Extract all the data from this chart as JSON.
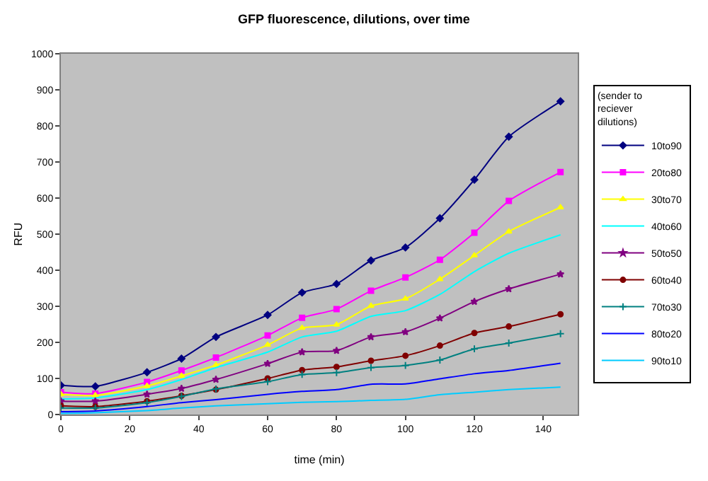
{
  "chart_data": {
    "type": "line",
    "title": "GFP fluorescence, dilutions, over time",
    "xlabel": "time (min)",
    "ylabel": "RFU",
    "legend_title": "(sender to reciever dilutions)",
    "x": [
      0,
      10,
      25,
      35,
      45,
      60,
      70,
      80,
      90,
      100,
      110,
      120,
      130,
      145
    ],
    "series": [
      {
        "name": "10to90",
        "color": "#000080",
        "marker": "diamond",
        "values": [
          81,
          78,
          117,
          155,
          215,
          276,
          338,
          362,
          427,
          463,
          544,
          651,
          770,
          868
        ]
      },
      {
        "name": "20to80",
        "color": "#ff00ff",
        "marker": "square",
        "values": [
          62,
          58,
          90,
          122,
          158,
          219,
          268,
          292,
          343,
          380,
          429,
          504,
          592,
          672
        ]
      },
      {
        "name": "30to70",
        "color": "#ffff00",
        "marker": "triangle",
        "values": [
          56,
          53,
          79,
          107,
          137,
          193,
          240,
          249,
          301,
          321,
          375,
          441,
          507,
          574
        ]
      },
      {
        "name": "40to60",
        "color": "#00ffff",
        "marker": "none",
        "values": [
          43,
          46,
          69,
          97,
          130,
          173,
          215,
          231,
          272,
          288,
          333,
          396,
          447,
          498
        ]
      },
      {
        "name": "50to50",
        "color": "#800080",
        "marker": "star",
        "values": [
          37,
          37,
          56,
          72,
          97,
          141,
          173,
          177,
          215,
          229,
          267,
          313,
          348,
          389
        ]
      },
      {
        "name": "60to40",
        "color": "#800000",
        "marker": "circle",
        "values": [
          24,
          22,
          37,
          52,
          69,
          100,
          123,
          132,
          149,
          163,
          191,
          226,
          244,
          278
        ]
      },
      {
        "name": "70to30",
        "color": "#008080",
        "marker": "cross",
        "values": [
          18,
          18,
          33,
          50,
          71,
          91,
          111,
          116,
          130,
          136,
          151,
          182,
          198,
          224
        ]
      },
      {
        "name": "80to20",
        "color": "#0000ff",
        "marker": "none",
        "values": [
          8,
          10,
          22,
          33,
          41,
          56,
          64,
          69,
          84,
          85,
          99,
          113,
          122,
          142
        ]
      },
      {
        "name": "90to10",
        "color": "#00ccff",
        "marker": "none",
        "values": [
          3,
          5,
          11,
          18,
          24,
          30,
          34,
          36,
          39,
          42,
          55,
          62,
          69,
          76
        ]
      }
    ],
    "xlim": [
      0,
      150
    ],
    "xticks": [
      0,
      20,
      40,
      60,
      80,
      100,
      120,
      140
    ],
    "ylim": [
      0,
      1000
    ],
    "yticks": [
      0,
      100,
      200,
      300,
      400,
      500,
      600,
      700,
      800,
      900,
      1000
    ],
    "grid": false,
    "legend": "right",
    "line_style": "solid"
  }
}
